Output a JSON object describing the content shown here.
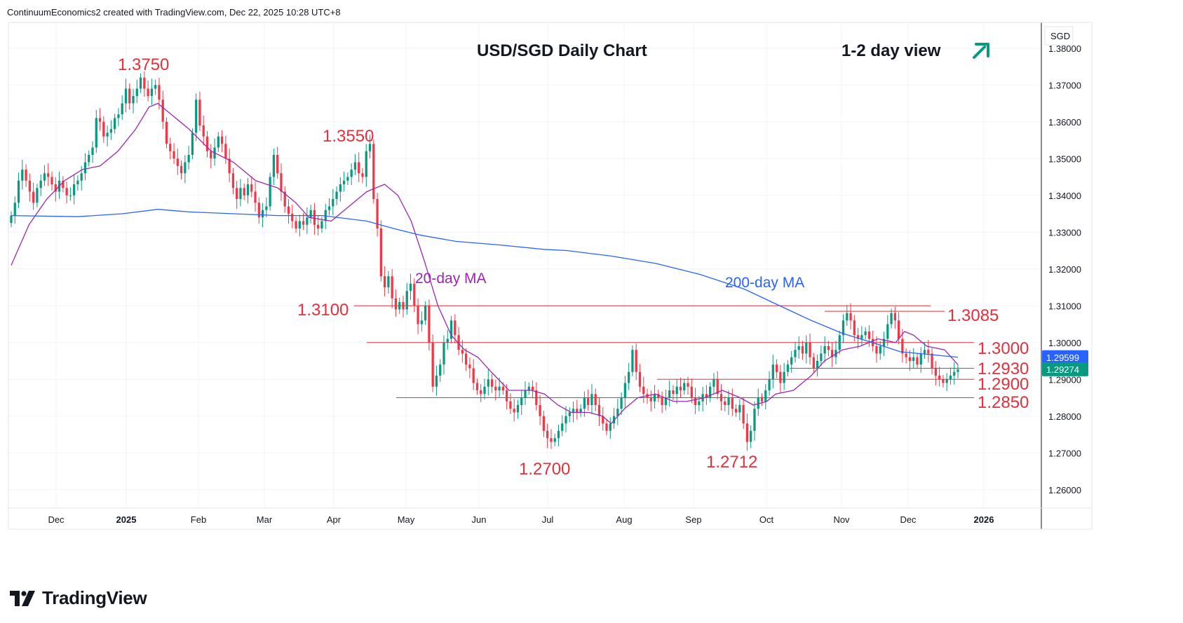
{
  "header": {
    "attribution": "ContinuumEconomics2 created with TradingView.com, Dec 22, 2025 10:28 UTC+8"
  },
  "brand": {
    "name": "TradingView",
    "icon": "tradingview-logo-icon"
  },
  "colors": {
    "up_candle": "#089981",
    "down_candle": "#f23645",
    "ma20": "#9c27b0",
    "ma200": "#2962ff",
    "annotation_red": "#e5303b",
    "arrow": "#089981"
  },
  "chart_data": {
    "type": "candlestick",
    "title": "USD/SGD Daily Chart",
    "subtitle": "1-2 day view",
    "view_direction": "up",
    "currency_label": "SGD",
    "ylim": [
      1.255,
      1.387
    ],
    "y_ticks": [
      "1.38000",
      "1.37000",
      "1.36000",
      "1.35000",
      "1.34000",
      "1.33000",
      "1.32000",
      "1.31000",
      "1.30000",
      "1.29000",
      "1.28000",
      "1.27000",
      "1.26000"
    ],
    "x_ticks": [
      "Dec",
      "2025",
      "Feb",
      "Mar",
      "Apr",
      "May",
      "Jun",
      "Jul",
      "Aug",
      "Sep",
      "Oct",
      "Nov",
      "Dec",
      "2026"
    ],
    "price_badges": [
      {
        "value": "1.29599",
        "color": "#2962ff"
      },
      {
        "value": "1.29274",
        "color": "#089981"
      }
    ],
    "series": [
      {
        "name": "20-day MA",
        "color": "#9c27b0",
        "points": [
          [
            1.321,
            0
          ],
          [
            1.332,
            4
          ],
          [
            1.339,
            8
          ],
          [
            1.344,
            12
          ],
          [
            1.347,
            16
          ],
          [
            1.348,
            20
          ],
          [
            1.352,
            24
          ],
          [
            1.358,
            28
          ],
          [
            1.364,
            31
          ],
          [
            1.365,
            33
          ],
          [
            1.362,
            36
          ],
          [
            1.358,
            40
          ],
          [
            1.352,
            45
          ],
          [
            1.349,
            50
          ],
          [
            1.344,
            55
          ],
          [
            1.342,
            60
          ],
          [
            1.338,
            64
          ],
          [
            1.334,
            67
          ],
          [
            1.333,
            72
          ],
          [
            1.337,
            76
          ],
          [
            1.341,
            80
          ],
          [
            1.343,
            84
          ],
          [
            1.34,
            87
          ],
          [
            1.333,
            90
          ],
          [
            1.322,
            93
          ],
          [
            1.31,
            96
          ],
          [
            1.302,
            99
          ],
          [
            1.298,
            102
          ],
          [
            1.296,
            105
          ],
          [
            1.292,
            108
          ],
          [
            1.287,
            112
          ],
          [
            1.287,
            117
          ],
          [
            1.286,
            120
          ],
          [
            1.283,
            123
          ],
          [
            1.281,
            126
          ],
          [
            1.281,
            130
          ],
          [
            1.28,
            133
          ],
          [
            1.278,
            135
          ],
          [
            1.282,
            138
          ],
          [
            1.285,
            141
          ],
          [
            1.286,
            145
          ],
          [
            1.284,
            149
          ],
          [
            1.284,
            152
          ],
          [
            1.285,
            156
          ],
          [
            1.287,
            160
          ],
          [
            1.285,
            164
          ],
          [
            1.283,
            167
          ],
          [
            1.284,
            170
          ],
          [
            1.286,
            172
          ],
          [
            1.287,
            176
          ],
          [
            1.291,
            180
          ],
          [
            1.295,
            183
          ],
          [
            1.298,
            187
          ],
          [
            1.299,
            191
          ],
          [
            1.301,
            195
          ],
          [
            1.3,
            199
          ],
          [
            1.303,
            201
          ],
          [
            1.302,
            203
          ],
          [
            1.299,
            206
          ],
          [
            1.298,
            210
          ],
          [
            1.294,
            213
          ]
        ]
      },
      {
        "name": "200-day MA",
        "color": "#2962ff",
        "points": [
          [
            1.3345,
            0
          ],
          [
            1.3342,
            15
          ],
          [
            1.335,
            25
          ],
          [
            1.3362,
            33
          ],
          [
            1.3355,
            40
          ],
          [
            1.335,
            50
          ],
          [
            1.3345,
            60
          ],
          [
            1.3345,
            70
          ],
          [
            1.333,
            80
          ],
          [
            1.331,
            86
          ],
          [
            1.3292,
            92
          ],
          [
            1.3275,
            100
          ],
          [
            1.3265,
            110
          ],
          [
            1.3253,
            120
          ],
          [
            1.325,
            125
          ],
          [
            1.3235,
            135
          ],
          [
            1.3215,
            145
          ],
          [
            1.3185,
            155
          ],
          [
            1.3145,
            165
          ],
          [
            1.3105,
            172
          ],
          [
            1.306,
            180
          ],
          [
            1.3025,
            187
          ],
          [
            1.2995,
            195
          ],
          [
            1.2975,
            200
          ],
          [
            1.296,
            213
          ]
        ]
      }
    ],
    "levels": [
      {
        "label": "1.3100",
        "value": 1.31,
        "annotation_side": "left"
      },
      {
        "label": "1.3085",
        "value": 1.3085,
        "annotation_side": "right"
      },
      {
        "label": "1.3000",
        "value": 1.3,
        "annotation_side": "right"
      },
      {
        "label": "1.2930",
        "value": 1.293,
        "annotation_side": "right"
      },
      {
        "label": "1.2900",
        "value": 1.29,
        "annotation_side": "right"
      },
      {
        "label": "1.2850",
        "value": 1.285,
        "annotation_side": "right"
      }
    ],
    "peak_labels": [
      {
        "label": "1.3750"
      },
      {
        "label": "1.3550"
      },
      {
        "label": "1.2700"
      },
      {
        "label": "1.2712"
      }
    ],
    "ma_labels": [
      {
        "label": "20-day MA"
      },
      {
        "label": "200-day MA"
      }
    ],
    "close": [
      1.3345,
      1.338,
      1.344,
      1.347,
      1.344,
      1.341,
      1.338,
      1.342,
      1.344,
      1.346,
      1.345,
      1.343,
      1.341,
      1.344,
      1.342,
      1.34,
      1.34,
      1.343,
      1.344,
      1.346,
      1.349,
      1.351,
      1.353,
      1.361,
      1.36,
      1.356,
      1.357,
      1.358,
      1.361,
      1.362,
      1.365,
      1.369,
      1.365,
      1.367,
      1.369,
      1.372,
      1.369,
      1.367,
      1.369,
      1.37,
      1.366,
      1.36,
      1.354,
      1.352,
      1.35,
      1.348,
      1.346,
      1.349,
      1.351,
      1.357,
      1.366,
      1.359,
      1.356,
      1.352,
      1.35,
      1.353,
      1.356,
      1.354,
      1.35,
      1.346,
      1.342,
      1.339,
      1.342,
      1.34,
      1.343,
      1.341,
      1.338,
      1.334,
      1.336,
      1.337,
      1.345,
      1.351,
      1.346,
      1.341,
      1.337,
      1.335,
      1.333,
      1.331,
      1.333,
      1.332,
      1.334,
      1.336,
      1.332,
      1.331,
      1.333,
      1.336,
      1.337,
      1.339,
      1.341,
      1.343,
      1.344,
      1.345,
      1.347,
      1.349,
      1.346,
      1.345,
      1.352,
      1.354,
      1.339,
      1.331,
      1.318,
      1.315,
      1.318,
      1.312,
      1.309,
      1.311,
      1.309,
      1.314,
      1.316,
      1.31,
      1.305,
      1.306,
      1.31,
      1.3,
      1.288,
      1.291,
      1.294,
      1.3,
      1.301,
      1.306,
      1.302,
      1.298,
      1.297,
      1.294,
      1.293,
      1.289,
      1.287,
      1.286,
      1.288,
      1.29,
      1.288,
      1.287,
      1.288,
      1.287,
      1.284,
      1.282,
      1.281,
      1.283,
      1.285,
      1.287,
      1.288,
      1.287,
      1.283,
      1.28,
      1.276,
      1.274,
      1.273,
      1.274,
      1.276,
      1.278,
      1.28,
      1.281,
      1.282,
      1.281,
      1.282,
      1.285,
      1.283,
      1.286,
      1.283,
      1.28,
      1.278,
      1.276,
      1.278,
      1.28,
      1.282,
      1.285,
      1.289,
      1.292,
      1.298,
      1.292,
      1.288,
      1.286,
      1.285,
      1.284,
      1.286,
      1.285,
      1.283,
      1.285,
      1.287,
      1.286,
      1.288,
      1.287,
      1.289,
      1.288,
      1.285,
      1.283,
      1.284,
      1.286,
      1.285,
      1.288,
      1.29,
      1.286,
      1.284,
      1.283,
      1.285,
      1.282,
      1.281,
      1.283,
      1.278,
      1.273,
      1.276,
      1.282,
      1.285,
      1.284,
      1.287,
      1.29,
      1.294,
      1.292,
      1.289,
      1.292,
      1.294,
      1.296,
      1.298,
      1.299,
      1.297,
      1.3,
      1.296,
      1.293,
      1.295,
      1.297,
      1.299,
      1.298,
      1.296,
      1.298,
      1.302,
      1.306,
      1.308,
      1.306,
      1.302,
      1.301,
      1.302,
      1.303,
      1.301,
      1.299,
      1.297,
      1.299,
      1.301,
      1.305,
      1.308,
      1.306,
      1.301,
      1.297,
      1.296,
      1.295,
      1.296,
      1.294,
      1.297,
      1.298,
      1.297,
      1.293,
      1.291,
      1.29,
      1.289,
      1.29,
      1.291,
      1.292,
      1.2927
    ]
  },
  "watermark": "1-2 day view"
}
